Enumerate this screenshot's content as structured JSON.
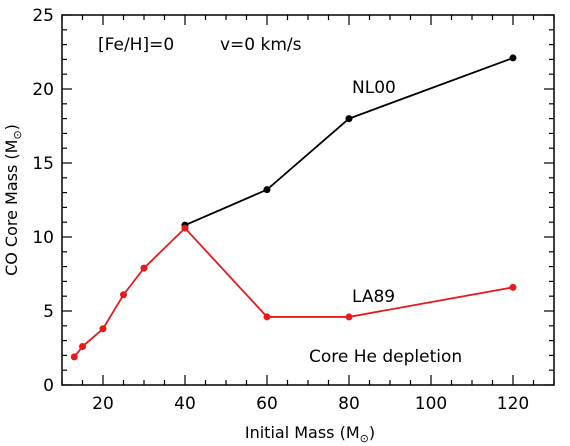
{
  "chart_data": {
    "type": "line",
    "title": "",
    "xlabel": "Initial Mass (M",
    "ylabel": "CO Core Mass (M",
    "unit_symbol": "⊙",
    "xlim": [
      10,
      130
    ],
    "ylim": [
      0,
      25
    ],
    "xticks": [
      20,
      40,
      60,
      80,
      100,
      120
    ],
    "yticks": [
      0,
      5,
      10,
      15,
      20,
      25
    ],
    "grid": false,
    "colors": {
      "NL00": "#000000",
      "LA89": "#e8191c"
    },
    "series": [
      {
        "name": "NL00",
        "x": [
          40,
          60,
          80,
          120
        ],
        "y": [
          10.8,
          13.2,
          18.0,
          22.1
        ]
      },
      {
        "name": "LA89",
        "x": [
          13,
          15,
          20,
          25,
          30,
          40,
          60,
          80,
          120
        ],
        "y": [
          1.9,
          2.6,
          3.8,
          6.1,
          7.9,
          10.6,
          4.6,
          4.6,
          6.6
        ]
      }
    ],
    "annotations": {
      "metallicity": "[Fe/H]=0",
      "rotation": "v=0 km/s",
      "phase": "Core He depletion"
    }
  }
}
